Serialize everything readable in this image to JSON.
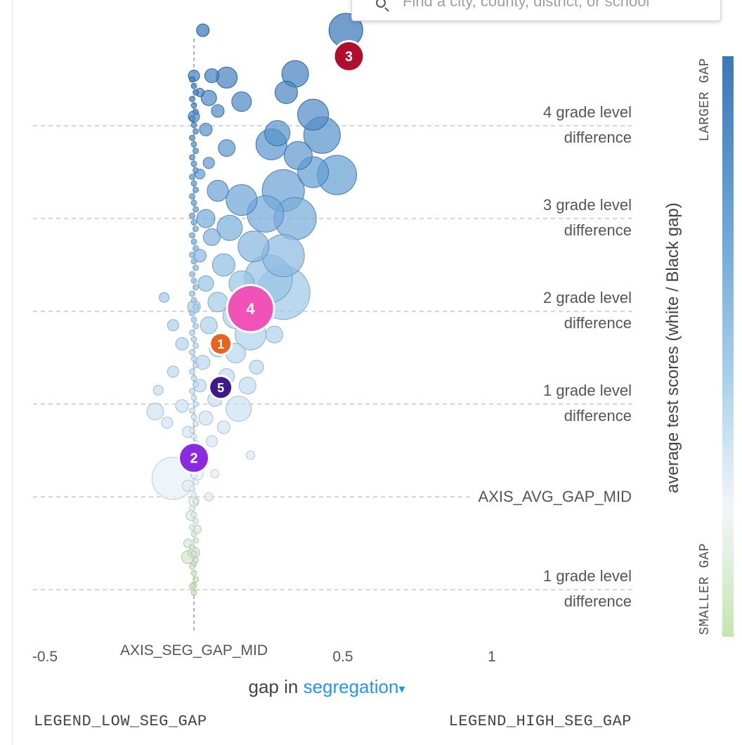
{
  "search": {
    "placeholder": "Find a city, county, district, or school"
  },
  "xaxis": {
    "prefix": "gap in",
    "metric": "segregation",
    "caret": "▾"
  },
  "legend": {
    "low": "LEGEND_LOW_SEG_GAP",
    "high": "LEGEND_HIGH_SEG_GAP"
  },
  "colorbar": {
    "top_label": "LARGER GAP",
    "bottom_label": "SMALLER GAP"
  },
  "colors": {
    "grid": "#c8c8c8",
    "bubble_dark": "#3a78b8",
    "bubble_light": "#e6f0f8",
    "bubble_green": "#c9e6b8",
    "marker_1": "#e8641e",
    "marker_2": "#8a2be2",
    "marker_3": "#b00d2f",
    "marker_4": "#f052b7",
    "marker_5": "#3d1a8c"
  },
  "chart_data": {
    "type": "scatter",
    "xlabel": "gap in segregation",
    "ylabel": "average test scores (white / Black gap)",
    "xlim": [
      -0.5,
      1.0
    ],
    "ylim": [
      -1.5,
      5.2
    ],
    "x_ticks": [
      {
        "value": -0.5,
        "label": "-0.5"
      },
      {
        "value": 0,
        "label": "AXIS_SEG_GAP_MID"
      },
      {
        "value": 0.5,
        "label": "0.5"
      },
      {
        "value": 1,
        "label": "1"
      }
    ],
    "y_ticks": [
      {
        "value": 4,
        "line1": "4 grade level",
        "line2": "difference"
      },
      {
        "value": 3,
        "line1": "3 grade level",
        "line2": "difference"
      },
      {
        "value": 2,
        "line1": "2 grade level",
        "line2": "difference"
      },
      {
        "value": 1,
        "line1": "1 grade level",
        "line2": "difference"
      },
      {
        "value": 0,
        "line1": "AXIS_AVG_GAP_MID",
        "line2": ""
      },
      {
        "value": -1,
        "line1": "1 grade level",
        "line2": "difference"
      }
    ],
    "grid": true,
    "markers": [
      {
        "label": "1",
        "x": 0.09,
        "y": 1.65,
        "color": "#e8641e"
      },
      {
        "label": "2",
        "x": 0.0,
        "y": 0.42,
        "color": "#8a2be2"
      },
      {
        "label": "3",
        "x": 0.52,
        "y": 4.75,
        "color": "#b00d2f"
      },
      {
        "label": "4",
        "x": 0.19,
        "y": 2.03,
        "color": "#f052b7"
      },
      {
        "label": "5",
        "x": 0.09,
        "y": 1.18,
        "color": "#3d1a8c"
      }
    ],
    "points": [
      {
        "x": 0.03,
        "y": 5.03,
        "r": 9
      },
      {
        "x": 0.51,
        "y": 5.03,
        "r": 24
      },
      {
        "x": 0.0,
        "y": 4.54,
        "r": 8
      },
      {
        "x": 0.06,
        "y": 4.54,
        "r": 10
      },
      {
        "x": 0.11,
        "y": 4.52,
        "r": 15
      },
      {
        "x": 0.34,
        "y": 4.56,
        "r": 19
      },
      {
        "x": 0.31,
        "y": 4.36,
        "r": 16
      },
      {
        "x": 0.02,
        "y": 4.36,
        "r": 6
      },
      {
        "x": 0.05,
        "y": 4.3,
        "r": 11
      },
      {
        "x": 0.16,
        "y": 4.26,
        "r": 14
      },
      {
        "x": 0.4,
        "y": 4.12,
        "r": 22
      },
      {
        "x": 0.08,
        "y": 4.16,
        "r": 9
      },
      {
        "x": 0.0,
        "y": 4.1,
        "r": 8
      },
      {
        "x": 0.43,
        "y": 3.9,
        "r": 26
      },
      {
        "x": 0.28,
        "y": 3.92,
        "r": 18
      },
      {
        "x": 0.26,
        "y": 3.8,
        "r": 22
      },
      {
        "x": 0.35,
        "y": 3.68,
        "r": 20
      },
      {
        "x": 0.04,
        "y": 3.96,
        "r": 9
      },
      {
        "x": 0.11,
        "y": 3.76,
        "r": 12
      },
      {
        "x": 0.05,
        "y": 3.6,
        "r": 8
      },
      {
        "x": 0.02,
        "y": 3.48,
        "r": 7
      },
      {
        "x": 0.4,
        "y": 3.5,
        "r": 22
      },
      {
        "x": 0.48,
        "y": 3.47,
        "r": 28
      },
      {
        "x": 0.3,
        "y": 3.3,
        "r": 30
      },
      {
        "x": 0.16,
        "y": 3.2,
        "r": 22
      },
      {
        "x": 0.08,
        "y": 3.3,
        "r": 15
      },
      {
        "x": 0.04,
        "y": 3.0,
        "r": 13
      },
      {
        "x": 0.24,
        "y": 3.05,
        "r": 26
      },
      {
        "x": 0.34,
        "y": 3.0,
        "r": 30
      },
      {
        "x": 0.12,
        "y": 2.9,
        "r": 18
      },
      {
        "x": 0.06,
        "y": 2.8,
        "r": 12
      },
      {
        "x": 0.2,
        "y": 2.7,
        "r": 22
      },
      {
        "x": 0.3,
        "y": 2.6,
        "r": 30
      },
      {
        "x": 0.02,
        "y": 2.6,
        "r": 9
      },
      {
        "x": 0.1,
        "y": 2.5,
        "r": 16
      },
      {
        "x": 0.25,
        "y": 2.35,
        "r": 34
      },
      {
        "x": 0.16,
        "y": 2.3,
        "r": 18
      },
      {
        "x": 0.04,
        "y": 2.3,
        "r": 11
      },
      {
        "x": 0.3,
        "y": 2.2,
        "r": 38
      },
      {
        "x": 0.08,
        "y": 2.1,
        "r": 14
      },
      {
        "x": 0.0,
        "y": 2.05,
        "r": 9
      },
      {
        "x": -0.1,
        "y": 2.15,
        "r": 7
      },
      {
        "x": 0.14,
        "y": 1.95,
        "r": 18
      },
      {
        "x": 0.05,
        "y": 1.85,
        "r": 12
      },
      {
        "x": -0.07,
        "y": 1.85,
        "r": 8
      },
      {
        "x": 0.19,
        "y": 1.75,
        "r": 22
      },
      {
        "x": 0.27,
        "y": 1.75,
        "r": 12
      },
      {
        "x": 0.08,
        "y": 1.6,
        "r": 12
      },
      {
        "x": -0.04,
        "y": 1.65,
        "r": 9
      },
      {
        "x": 0.14,
        "y": 1.55,
        "r": 14
      },
      {
        "x": 0.03,
        "y": 1.45,
        "r": 10
      },
      {
        "x": 0.21,
        "y": 1.4,
        "r": 10
      },
      {
        "x": -0.07,
        "y": 1.35,
        "r": 8
      },
      {
        "x": 0.11,
        "y": 1.3,
        "r": 11
      },
      {
        "x": 0.02,
        "y": 1.2,
        "r": 9
      },
      {
        "x": 0.18,
        "y": 1.2,
        "r": 12
      },
      {
        "x": -0.12,
        "y": 1.15,
        "r": 7
      },
      {
        "x": 0.07,
        "y": 1.05,
        "r": 10
      },
      {
        "x": -0.04,
        "y": 0.98,
        "r": 9
      },
      {
        "x": 0.15,
        "y": 0.95,
        "r": 18
      },
      {
        "x": -0.13,
        "y": 0.92,
        "r": 12
      },
      {
        "x": 0.04,
        "y": 0.85,
        "r": 10
      },
      {
        "x": -0.09,
        "y": 0.8,
        "r": 8
      },
      {
        "x": 0.1,
        "y": 0.75,
        "r": 9
      },
      {
        "x": -0.02,
        "y": 0.7,
        "r": 8
      },
      {
        "x": 0.06,
        "y": 0.6,
        "r": 8
      },
      {
        "x": 0.19,
        "y": 0.45,
        "r": 6
      },
      {
        "x": -0.07,
        "y": 0.2,
        "r": 30
      },
      {
        "x": 0.01,
        "y": 0.25,
        "r": 9
      },
      {
        "x": 0.07,
        "y": 0.25,
        "r": 6
      },
      {
        "x": -0.02,
        "y": 0.12,
        "r": 8
      },
      {
        "x": 0.05,
        "y": 0.0,
        "r": 6
      },
      {
        "x": 0.0,
        "y": -0.05,
        "r": 7
      },
      {
        "x": -0.01,
        "y": -0.2,
        "r": 7
      },
      {
        "x": 0.01,
        "y": -0.35,
        "r": 6
      },
      {
        "x": -0.02,
        "y": -0.5,
        "r": 6
      },
      {
        "x": 0.0,
        "y": -0.6,
        "r": 8
      },
      {
        "x": -0.02,
        "y": -0.65,
        "r": 9
      },
      {
        "x": 0.0,
        "y": -0.72,
        "r": 4
      },
      {
        "x": 0.0,
        "y": -0.95,
        "r": 4
      }
    ]
  }
}
